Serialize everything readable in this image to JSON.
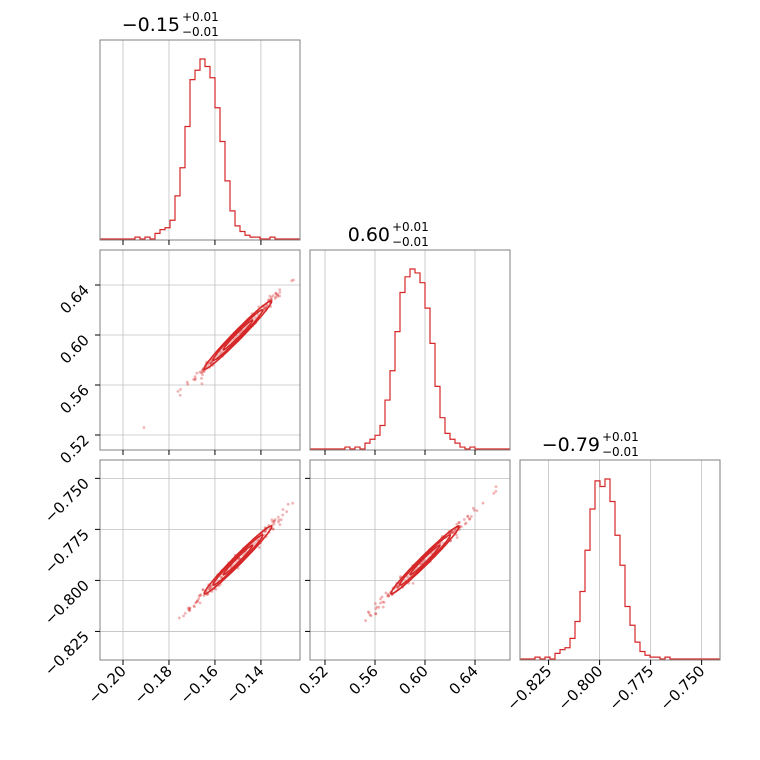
{
  "chart_data": {
    "type": "corner",
    "color": "#d62728",
    "params": [
      {
        "median": -0.15,
        "err_plus": 0.01,
        "err_minus": 0.01,
        "title": "−0.15",
        "title_plus": "+0.01",
        "title_minus": "−0.01",
        "range": [
          -0.21,
          -0.123
        ],
        "ticks": [
          -0.2,
          -0.18,
          -0.16,
          -0.14
        ],
        "tick_labels": [
          "−0.20",
          "−0.18",
          "−0.16",
          "−0.14"
        ],
        "sigma": 0.0075
      },
      {
        "median": 0.6,
        "err_plus": 0.01,
        "err_minus": 0.01,
        "title": "0.60",
        "title_plus": "+0.01",
        "title_minus": "−0.01",
        "range": [
          0.508,
          0.668
        ],
        "ticks": [
          0.52,
          0.56,
          0.6,
          0.64
        ],
        "tick_labels": [
          "0.52",
          "0.56",
          "0.60",
          "0.64"
        ],
        "sigma": 0.014
      },
      {
        "median": -0.79,
        "err_plus": 0.01,
        "err_minus": 0.01,
        "title": "−0.79",
        "title_plus": "+0.01",
        "title_minus": "−0.01",
        "range": [
          -0.839,
          -0.741
        ],
        "ticks": [
          -0.825,
          -0.8,
          -0.775,
          -0.75
        ],
        "tick_labels": [
          "−0.825",
          "−0.800",
          "−0.775",
          "−0.750"
        ],
        "sigma": 0.0085
      }
    ],
    "histograms": [
      [
        0,
        0,
        0,
        0,
        0,
        0,
        0,
        1,
        0,
        1,
        0,
        3,
        5,
        6,
        10,
        23,
        38,
        60,
        85,
        90,
        96,
        92,
        86,
        70,
        52,
        31,
        15,
        7,
        4,
        2,
        1,
        1,
        0,
        0,
        1,
        0,
        0,
        0,
        0,
        0
      ],
      [
        0,
        0,
        0,
        0,
        0,
        0,
        0,
        1,
        0,
        1,
        0,
        3,
        5,
        7,
        12,
        25,
        40,
        60,
        80,
        88,
        92,
        90,
        85,
        72,
        54,
        32,
        16,
        8,
        5,
        3,
        1,
        0,
        1,
        0,
        0,
        0,
        0,
        0,
        0,
        0
      ],
      [
        0,
        0,
        0,
        1,
        0,
        1,
        0,
        3,
        5,
        6,
        11,
        20,
        36,
        58,
        80,
        95,
        92,
        96,
        84,
        66,
        50,
        28,
        18,
        9,
        4,
        2,
        1,
        1,
        0,
        1,
        0,
        0,
        0,
        0,
        0,
        0,
        0,
        0,
        0,
        0
      ]
    ],
    "grid": true
  }
}
